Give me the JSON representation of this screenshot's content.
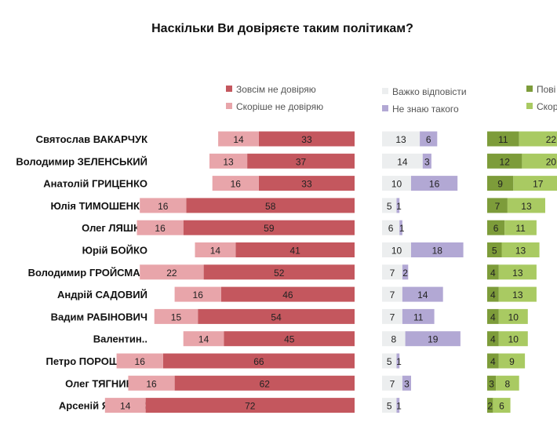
{
  "chart_data": {
    "type": "bar",
    "title": "Наскільки Ви довіряєте таким політикам?",
    "categories": [
      "Святослав ВАКАРЧУК",
      "Володимир ЗЕЛЕНСЬКИЙ",
      "Анатолій ГРИЦЕНКО",
      "Юлія ТИМОШЕНКО",
      "Олег ЛЯШКО",
      "Юрій БОЙКО",
      "Володимир ГРОЙСМАН",
      "Андрій САДОВИЙ",
      "Вадим РАБІНОВИЧ",
      "Валентин..",
      "Петро ПОРОШЕНКО",
      "Олег ТЯГНИБОК",
      "Арсеній ЯЦЕНЮК"
    ],
    "series": [
      {
        "name": "Зовсім не довіряю",
        "color": "#c4575e",
        "values": [
          33,
          37,
          33,
          58,
          59,
          41,
          52,
          46,
          54,
          45,
          66,
          62,
          72
        ]
      },
      {
        "name": "Скоріше не довіряю",
        "color": "#e8a5aa",
        "values": [
          14,
          13,
          16,
          16,
          16,
          14,
          22,
          16,
          15,
          14,
          16,
          16,
          14
        ]
      },
      {
        "name": "Важко відповісти",
        "color": "#eceeef",
        "values": [
          13,
          14,
          10,
          5,
          6,
          10,
          7,
          7,
          7,
          8,
          5,
          7,
          5
        ]
      },
      {
        "name": "Не знаю такого",
        "color": "#b2a8d4",
        "values": [
          6,
          3,
          16,
          1,
          1,
          18,
          2,
          14,
          11,
          19,
          1,
          3,
          1
        ]
      },
      {
        "name": "Пові",
        "color": "#7d9c3a",
        "values": [
          11,
          12,
          9,
          7,
          6,
          5,
          4,
          4,
          4,
          4,
          4,
          3,
          2
        ]
      },
      {
        "name": "Скор",
        "color": "#a9ca62",
        "values": [
          22,
          20,
          17,
          13,
          11,
          13,
          13,
          13,
          10,
          10,
          9,
          8,
          6
        ]
      }
    ],
    "grid": false,
    "legend_placement": "top"
  }
}
